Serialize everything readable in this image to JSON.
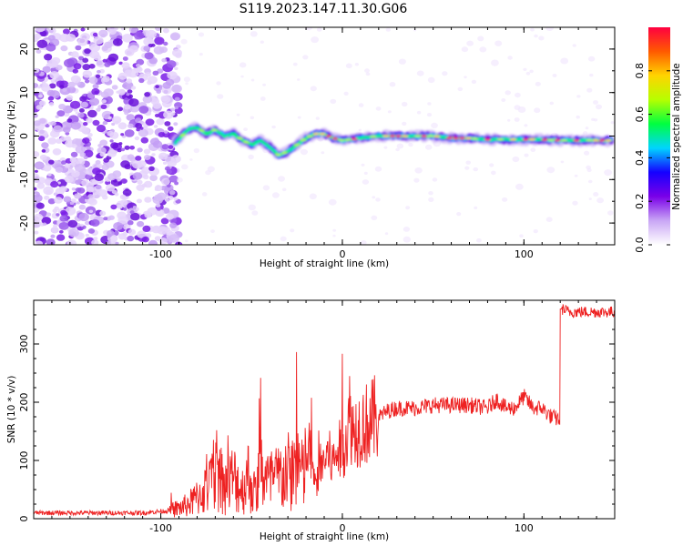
{
  "figure": {
    "title": "S119.2023.147.11.30.G06"
  },
  "chart_data": [
    {
      "type": "heatmap",
      "xlabel": "Height of straight line (km)",
      "ylabel": "Frequency (Hz)",
      "xlim": [
        -170,
        150
      ],
      "ylim": [
        -25,
        25
      ],
      "xticks": [
        -100,
        0,
        100
      ],
      "yticks": [
        -20,
        -10,
        0,
        10,
        20
      ],
      "colorbar": {
        "label": "Normalized spectral amplitude",
        "range": [
          0,
          1
        ],
        "ticks": [
          "0.0",
          "0.2",
          "0.4",
          "0.6",
          "0.8"
        ],
        "colors": [
          "#ffffff",
          "#c9a6f5",
          "#7a00e8",
          "#1500ff",
          "#00d4ff",
          "#00ff40",
          "#b6ff00",
          "#ffd400",
          "#ff5a00",
          "#ff0040"
        ]
      },
      "ridge": {
        "x": [
          -92,
          -85,
          -80,
          -75,
          -70,
          -65,
          -60,
          -55,
          -50,
          -45,
          -40,
          -35,
          -30,
          -25,
          -20,
          -15,
          -10,
          -5,
          0,
          10,
          20,
          30,
          40,
          50,
          60,
          70,
          80,
          90,
          100,
          110,
          120,
          130,
          140,
          148
        ],
        "freq": [
          -1.5,
          1.5,
          2.0,
          0.5,
          1.5,
          0.0,
          0.5,
          -1.0,
          -2.0,
          -1.0,
          -2.5,
          -4.5,
          -3.5,
          -2.0,
          -0.5,
          0.5,
          0.5,
          -0.5,
          -1.0,
          -0.5,
          0.0,
          0.0,
          0.0,
          0.0,
          -0.5,
          -0.5,
          -0.8,
          -0.8,
          -0.8,
          -0.8,
          -1.0,
          -1.0,
          -1.0,
          -1.0
        ]
      }
    },
    {
      "type": "line",
      "xlabel": "Height of straight line (km)",
      "ylabel": "SNR (10 * v/v)",
      "xlim": [
        -170,
        150
      ],
      "ylim": [
        0,
        375
      ],
      "xticks": [
        -100,
        0,
        100
      ],
      "yticks": [
        0,
        100,
        200,
        300
      ],
      "series": [
        {
          "color": "#ee2222",
          "x": [
            -170,
            -150,
            -130,
            -110,
            -95,
            -88,
            -82,
            -77,
            -72,
            -69,
            -65,
            -60,
            -55,
            -52,
            -48,
            -45,
            -40,
            -35,
            -30,
            -28,
            -25,
            -22,
            -18,
            -15,
            -12,
            -8,
            -5,
            -3,
            0,
            3,
            4,
            6,
            10,
            15,
            20,
            25,
            30,
            40,
            50,
            60,
            70,
            80,
            85,
            90,
            95,
            100,
            105,
            110,
            115,
            120,
            121,
            125,
            135,
            145,
            150
          ],
          "y": [
            10,
            10,
            10,
            10,
            14,
            20,
            30,
            45,
            60,
            90,
            55,
            70,
            50,
            75,
            40,
            85,
            60,
            70,
            80,
            75,
            110,
            70,
            120,
            55,
            90,
            110,
            95,
            115,
            120,
            150,
            180,
            150,
            160,
            165,
            175,
            185,
            190,
            190,
            195,
            195,
            195,
            190,
            205,
            190,
            190,
            210,
            190,
            190,
            175,
            170,
            360,
            355,
            355,
            355,
            355
          ]
        }
      ]
    }
  ]
}
